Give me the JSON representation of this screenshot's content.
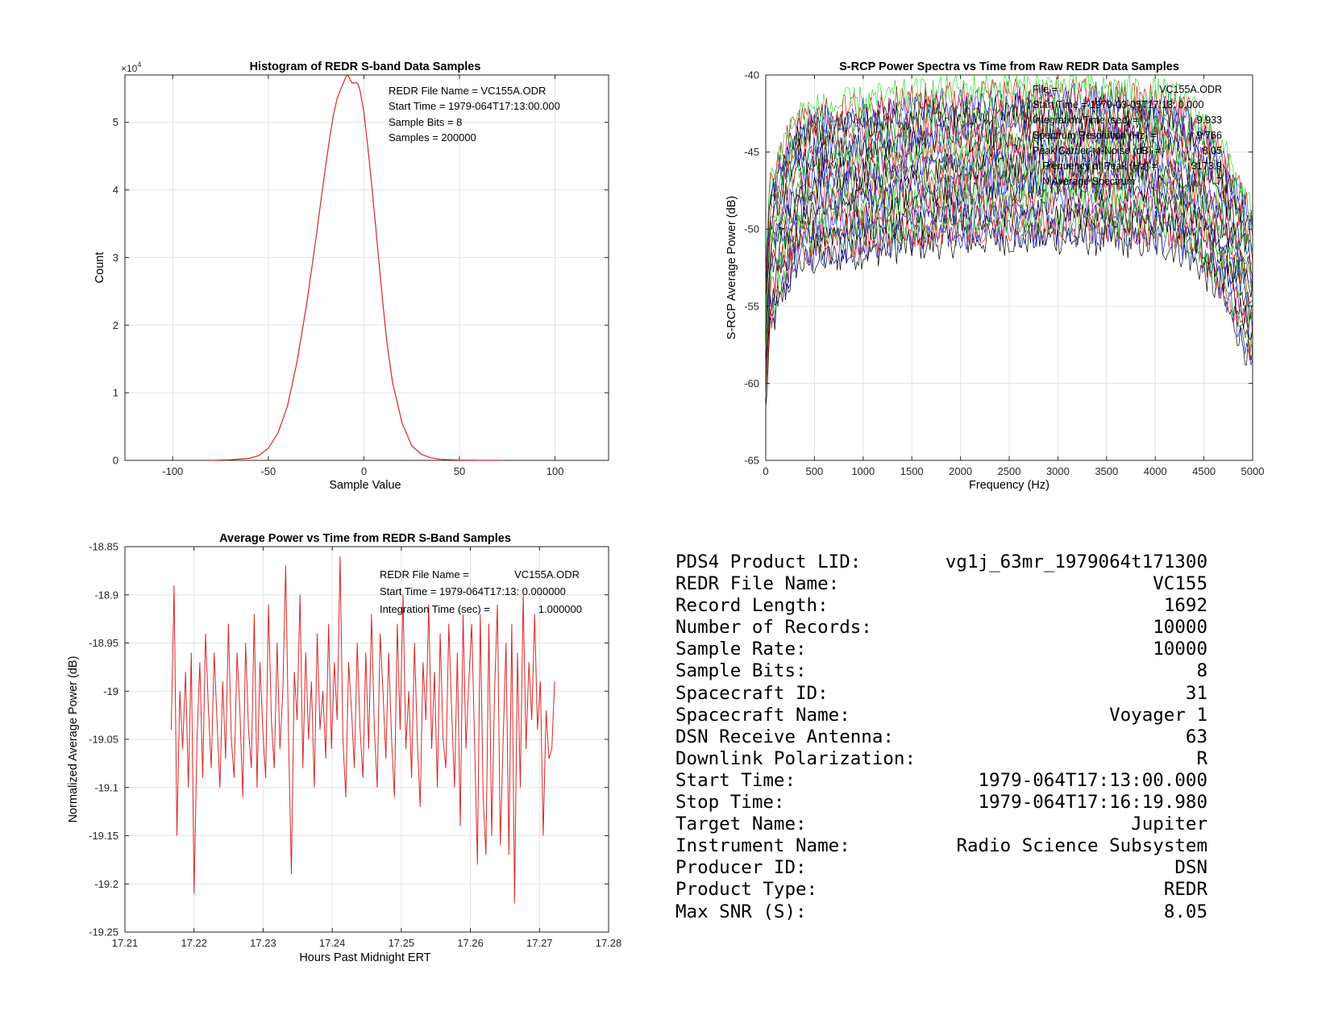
{
  "histogram": {
    "title": "Histogram of REDR S-band Data Samples",
    "xlabel": "Sample Value",
    "ylabel": "Count",
    "exponent_base": "×10",
    "exponent_power": "4",
    "annotations": [
      "REDR File Name = VC155A.ODR",
      "Start Time = 1979-064T17:13:00.000",
      "Sample Bits = 8",
      "Samples = 200000"
    ]
  },
  "spectra": {
    "title": "S-RCP Power Spectra vs Time from Raw REDR Data Samples",
    "xlabel": "Frequency (Hz)",
    "ylabel": "S-RCP Average Power (dB)",
    "annotations": [
      {
        "label": "File =",
        "value": "VC155A.ODR"
      },
      {
        "label": "Start Time = 1979-03-05T17:13: 0.000",
        "value": ""
      },
      {
        "label": "Integration Time (sec) =",
        "value": "9.933"
      },
      {
        "label": "Spectrum Resolution (Hz) =",
        "value": "9.766"
      },
      {
        "label": "Peak Carrier-to-Noise (dB) =",
        "value": "8.05"
      },
      {
        "label": "Frequency of Peak (Hz) =",
        "value": "3173.9"
      },
      {
        "label": "N Average Spectrum",
        "value": "7"
      }
    ]
  },
  "power": {
    "title": "Average Power vs Time from REDR S-Band Samples",
    "xlabel": "Hours Past Midnight ERT",
    "ylabel": "Normalized Average Power (dB)",
    "annotations": [
      {
        "label": "REDR File Name =",
        "value": "VC155A.ODR"
      },
      {
        "label": "Start Time = 1979-064T17:13: 0.000000",
        "value": ""
      },
      {
        "label": "Integration Time (sec) =",
        "value": "1.000000"
      }
    ]
  },
  "info": {
    "rows": [
      {
        "label": "PDS4 Product LID:",
        "value": "vg1j_63mr_1979064t171300"
      },
      {
        "label": "REDR File Name:",
        "value": "VC155"
      },
      {
        "label": "Record Length:",
        "value": "1692"
      },
      {
        "label": "Number of Records:",
        "value": "10000"
      },
      {
        "label": "Sample Rate:",
        "value": "10000"
      },
      {
        "label": "Sample Bits:",
        "value": "8"
      },
      {
        "label": "Spacecraft ID:",
        "value": "31"
      },
      {
        "label": "Spacecraft Name:",
        "value": "Voyager 1"
      },
      {
        "label": "DSN Receive Antenna:",
        "value": "63"
      },
      {
        "label": "Downlink Polarization:",
        "value": "R"
      },
      {
        "label": "Start Time:",
        "value": "1979-064T17:13:00.000"
      },
      {
        "label": "Stop Time:",
        "value": "1979-064T17:16:19.980"
      },
      {
        "label": "Target Name:",
        "value": "Jupiter"
      },
      {
        "label": "Instrument Name:",
        "value": "Radio Science Subsystem"
      },
      {
        "label": "Producer ID:",
        "value": "DSN"
      },
      {
        "label": "Product Type:",
        "value": "REDR"
      },
      {
        "label": "Max SNR (S):",
        "value": "8.05"
      }
    ]
  },
  "chart_data": [
    {
      "type": "line",
      "title": "Histogram of REDR S-band Data Samples",
      "xlabel": "Sample Value",
      "ylabel": "Count",
      "xlim": [
        -125,
        128
      ],
      "ylim": [
        0,
        57000
      ],
      "xticks": [
        -100,
        -50,
        0,
        50,
        100
      ],
      "yticks": [
        0,
        10000,
        20000,
        30000,
        40000,
        50000
      ],
      "ytick_labels": [
        "0",
        "1",
        "2",
        "3",
        "4",
        "5"
      ],
      "grid": true,
      "color": "#d62728",
      "x": [
        -80,
        -70,
        -60,
        -55,
        -50,
        -45,
        -40,
        -35,
        -30,
        -25,
        -22,
        -20,
        -18,
        -16,
        -14,
        -12,
        -10,
        -9,
        -8,
        -7,
        -6,
        -5,
        -4,
        -3,
        -2,
        0,
        2,
        4,
        6,
        8,
        10,
        12,
        15,
        20,
        25,
        30,
        35,
        40,
        50,
        60,
        70
      ],
      "y": [
        0,
        100,
        300,
        700,
        1800,
        4000,
        8000,
        14500,
        23000,
        33000,
        39500,
        43500,
        47500,
        51000,
        53500,
        55000,
        56300,
        57000,
        56800,
        56200,
        55800,
        55800,
        55900,
        55600,
        54700,
        51500,
        46500,
        41000,
        35000,
        29000,
        23000,
        17500,
        11500,
        5500,
        2200,
        900,
        380,
        150,
        50,
        10,
        0
      ]
    },
    {
      "type": "line",
      "title": "S-RCP Power Spectra vs Time from Raw REDR Data Samples",
      "xlabel": "Frequency (Hz)",
      "ylabel": "S-RCP Average Power (dB)",
      "xlim": [
        0,
        5000
      ],
      "ylim": [
        -65,
        -40
      ],
      "xticks": [
        0,
        500,
        1000,
        1500,
        2000,
        2500,
        3000,
        3500,
        4000,
        4500,
        5000
      ],
      "yticks": [
        -65,
        -60,
        -55,
        -50,
        -45,
        -40
      ],
      "grid": true,
      "series": [
        {
          "color": "#000000",
          "peak_db": -51.7
        },
        {
          "color": "#2020c8",
          "peak_db": -51.2
        },
        {
          "color": "#d01c1c",
          "peak_db": -50.8
        },
        {
          "color": "#1fa01f",
          "peak_db": -50.4
        },
        {
          "color": "#000000",
          "peak_db": -50.0
        },
        {
          "color": "#2020c8",
          "peak_db": -49.5
        },
        {
          "color": "#d01c1c",
          "peak_db": -49.1
        },
        {
          "color": "#33dd33",
          "peak_db": -48.7
        },
        {
          "color": "#000000",
          "peak_db": -48.3
        },
        {
          "color": "#2020c8",
          "peak_db": -47.8
        },
        {
          "color": "#d01c1c",
          "peak_db": -47.4
        },
        {
          "color": "#1fa01f",
          "peak_db": -47.0
        },
        {
          "color": "#000000",
          "peak_db": -46.6
        },
        {
          "color": "#2020c8",
          "peak_db": -46.1
        },
        {
          "color": "#d01c1c",
          "peak_db": -45.7
        },
        {
          "color": "#33dd33",
          "peak_db": -45.3
        },
        {
          "color": "#000000",
          "peak_db": -44.9
        },
        {
          "color": "#2020c8",
          "peak_db": -44.4
        },
        {
          "color": "#d01c1c",
          "peak_db": -44.0
        },
        {
          "color": "#1fa01f",
          "peak_db": -43.6
        },
        {
          "color": "#000000",
          "peak_db": -43.2
        },
        {
          "color": "#2020c8",
          "peak_db": -42.7
        },
        {
          "color": "#d01c1c",
          "peak_db": -42.3
        },
        {
          "color": "#33dd33",
          "peak_db": -41.9
        }
      ]
    },
    {
      "type": "line",
      "title": "Average Power vs Time from REDR S-Band Samples",
      "xlabel": "Hours Past Midnight ERT",
      "ylabel": "Normalized Average Power (dB)",
      "xlim": [
        17.21,
        17.28
      ],
      "ylim": [
        -19.25,
        -18.85
      ],
      "xticks": [
        17.21,
        17.22,
        17.23,
        17.24,
        17.25,
        17.26,
        17.27,
        17.28
      ],
      "yticks": [
        -19.25,
        -19.2,
        -19.15,
        -19.1,
        -19.05,
        -19,
        -18.95,
        -18.9,
        -18.85
      ],
      "grid": true,
      "color": "#d62728",
      "x_start": 17.2167,
      "x_end": 17.2722,
      "y": [
        -19.04,
        -18.89,
        -19.15,
        -19.0,
        -19.06,
        -18.98,
        -19.1,
        -18.96,
        -19.21,
        -19.05,
        -18.97,
        -19.09,
        -18.94,
        -19.02,
        -19.08,
        -18.96,
        -19.03,
        -19.1,
        -18.99,
        -19.07,
        -18.93,
        -19.05,
        -19.09,
        -18.96,
        -19.02,
        -19.11,
        -18.95,
        -19.04,
        -19.08,
        -18.92,
        -19.1,
        -18.97,
        -19.04,
        -19.09,
        -18.91,
        -19.03,
        -19.08,
        -18.95,
        -19.06,
        -19.0,
        -18.87,
        -19.05,
        -19.19,
        -18.98,
        -19.03,
        -18.9,
        -19.08,
        -18.96,
        -19.05,
        -18.99,
        -19.1,
        -18.94,
        -19.04,
        -19.0,
        -19.07,
        -18.93,
        -19.06,
        -18.97,
        -19.03,
        -18.86,
        -19.05,
        -19.11,
        -18.97,
        -19.02,
        -19.08,
        -18.95,
        -19.04,
        -19.09,
        -18.96,
        -19.06,
        -18.92,
        -19.04,
        -19.1,
        -18.94,
        -19.0,
        -19.07,
        -18.96,
        -19.05,
        -19.11,
        -18.93,
        -19.04,
        -18.9,
        -19.06,
        -19.0,
        -19.09,
        -18.95,
        -19.05,
        -19.12,
        -18.97,
        -19.03,
        -18.91,
        -19.06,
        -18.98,
        -19.1,
        -18.94,
        -19.05,
        -19.08,
        -18.93,
        -19.02,
        -19.1,
        -18.96,
        -19.14,
        -18.92,
        -19.06,
        -18.99,
        -18.93,
        -19.05,
        -19.18,
        -18.92,
        -19.11,
        -19.17,
        -18.93,
        -19.15,
        -19.0,
        -18.91,
        -19.16,
        -19.05,
        -18.95,
        -19.17,
        -18.93,
        -19.22,
        -18.96,
        -19.1,
        -18.9,
        -19.06,
        -18.97,
        -19.03,
        -18.92,
        -19.04,
        -18.99,
        -19.15,
        -19.02,
        -19.07,
        -19.06,
        -18.99
      ]
    }
  ]
}
